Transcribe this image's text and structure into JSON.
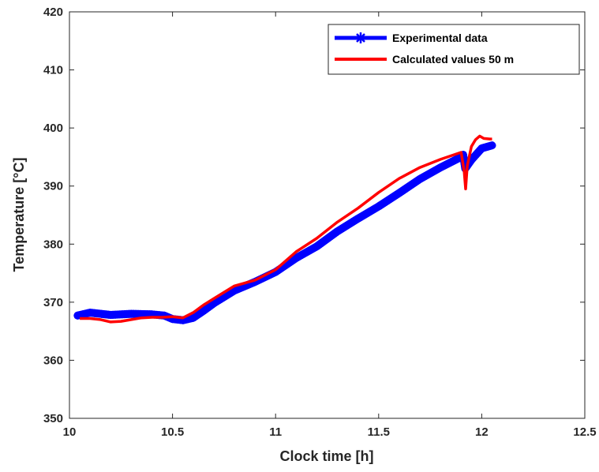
{
  "chart_data": {
    "type": "line",
    "title": "",
    "xlabel": "Clock time [h]",
    "ylabel": "Temperature [°C]",
    "xlim": [
      10,
      12.5
    ],
    "ylim": [
      350,
      420
    ],
    "x_ticks": [
      10,
      10.5,
      11,
      11.5,
      12,
      12.5
    ],
    "x_tick_labels": [
      "10",
      "10.5",
      "11",
      "11.5",
      "12",
      "12.5"
    ],
    "y_ticks": [
      350,
      360,
      370,
      380,
      390,
      400,
      410,
      420
    ],
    "y_tick_labels": [
      "350",
      "360",
      "370",
      "380",
      "390",
      "400",
      "410",
      "420"
    ],
    "grid": false,
    "legend_position": "top-right",
    "series": [
      {
        "name": "Experimental data",
        "color": "#0000ff",
        "marker": "asterisk",
        "x": [
          10.04,
          10.1,
          10.2,
          10.3,
          10.4,
          10.46,
          10.5,
          10.55,
          10.6,
          10.65,
          10.7,
          10.8,
          10.9,
          11.0,
          11.1,
          11.2,
          11.3,
          11.4,
          11.5,
          11.6,
          11.7,
          11.8,
          11.9,
          11.91,
          11.92,
          11.95,
          12.0,
          12.05
        ],
        "y": [
          367.7,
          368.2,
          367.8,
          368.0,
          367.9,
          367.7,
          367.1,
          366.9,
          367.3,
          368.5,
          369.8,
          372.0,
          373.5,
          375.2,
          377.6,
          379.6,
          382.2,
          384.4,
          386.5,
          388.8,
          391.2,
          393.2,
          395.0,
          395.4,
          393.0,
          394.5,
          396.5,
          397.0
        ]
      },
      {
        "name": "Calculated values 50 m",
        "color": "#ff0000",
        "marker": "none",
        "x": [
          10.05,
          10.1,
          10.15,
          10.2,
          10.25,
          10.3,
          10.35,
          10.4,
          10.45,
          10.5,
          10.55,
          10.6,
          10.65,
          10.7,
          10.8,
          10.9,
          11.0,
          11.1,
          11.2,
          11.3,
          11.4,
          11.5,
          11.6,
          11.7,
          11.8,
          11.9,
          11.915,
          11.922,
          11.93,
          11.95,
          11.97,
          11.99,
          12.01,
          12.04,
          12.05
        ],
        "y": [
          367.2,
          367.2,
          367.0,
          366.6,
          366.7,
          367.0,
          367.3,
          367.4,
          367.4,
          367.5,
          367.3,
          368.2,
          369.5,
          370.6,
          372.8,
          373.8,
          375.6,
          378.7,
          381.0,
          383.8,
          386.2,
          388.9,
          391.3,
          393.2,
          394.6,
          395.8,
          392.5,
          389.5,
          393.5,
          396.8,
          398.0,
          398.6,
          398.2,
          398.1,
          398.1
        ]
      }
    ]
  }
}
